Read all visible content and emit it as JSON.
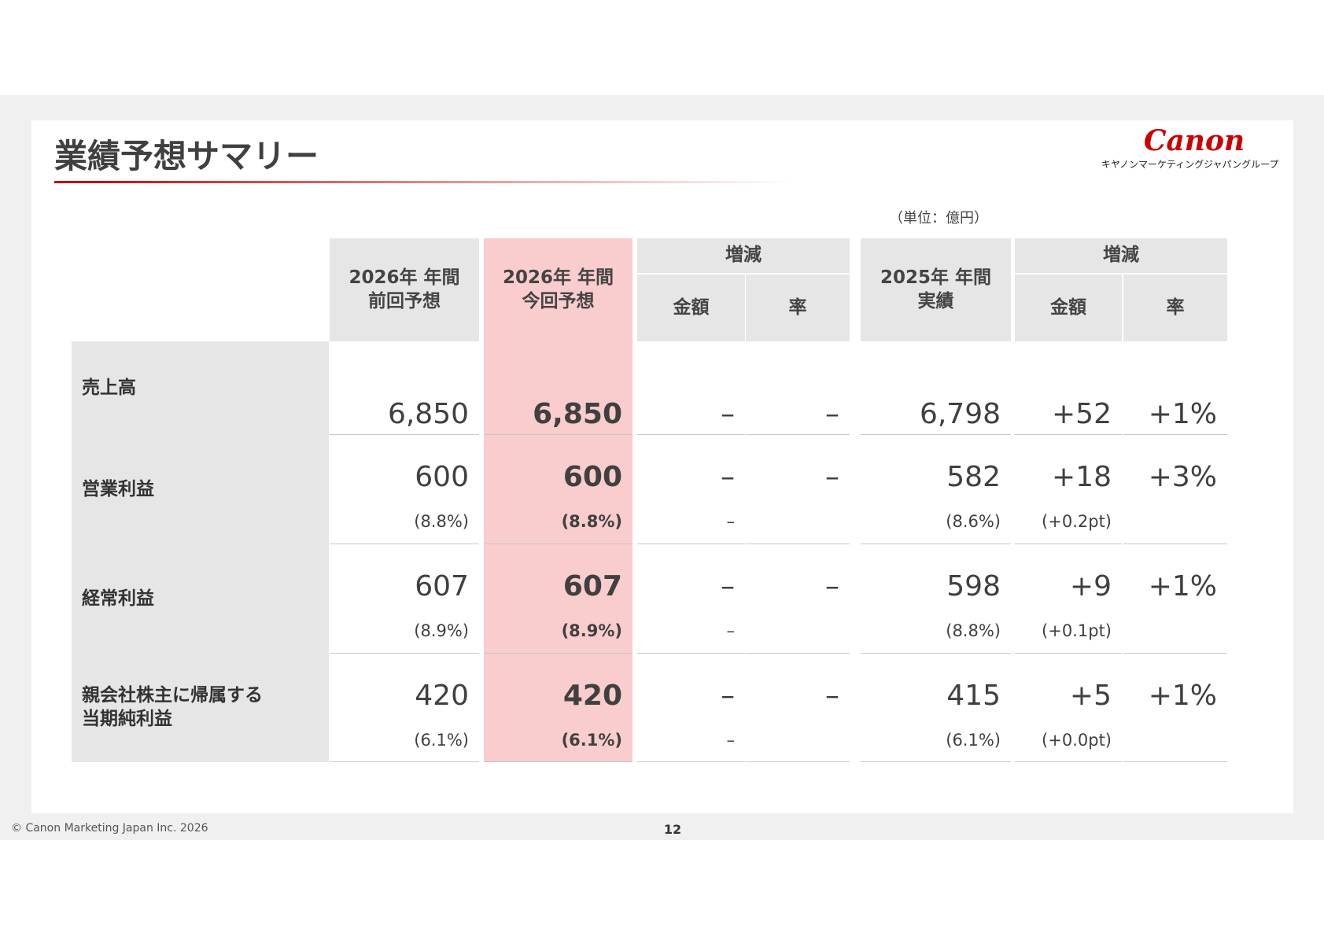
{
  "header": {
    "title": "業績予想サマリー",
    "logo": "Canon",
    "logo_sub": "キヤノンマーケティングジャパングループ",
    "unit": "（単位：億円）"
  },
  "table": {
    "columns": [
      {
        "lines": [
          "2026年 年間",
          "前回予想"
        ]
      },
      {
        "lines": [
          "2026年 年間",
          "今回予想"
        ]
      },
      {
        "group": "増減",
        "subs": [
          "金額",
          "率"
        ]
      },
      {
        "lines": [
          "2025年 年間",
          "実績"
        ]
      },
      {
        "group": "増減",
        "subs": [
          "金額",
          "率"
        ]
      }
    ],
    "rows": [
      {
        "label": [
          "売上高"
        ],
        "cells": [
          {
            "main": "6,850"
          },
          {
            "main": "6,850"
          },
          {
            "main": "–"
          },
          {
            "main": "–"
          },
          {
            "main": "6,798"
          },
          {
            "main": "+52"
          },
          {
            "main": "+1%"
          }
        ]
      },
      {
        "label": [
          "営業利益"
        ],
        "cells": [
          {
            "main": "600",
            "sub": "(8.8%)"
          },
          {
            "main": "600",
            "sub": "(8.8%)"
          },
          {
            "main": "–",
            "sub": "–"
          },
          {
            "main": "–"
          },
          {
            "main": "582",
            "sub": "(8.6%)"
          },
          {
            "main": "+18",
            "sub": "(+0.2pt)"
          },
          {
            "main": "+3%"
          }
        ]
      },
      {
        "label": [
          "経常利益"
        ],
        "cells": [
          {
            "main": "607",
            "sub": "(8.9%)"
          },
          {
            "main": "607",
            "sub": "(8.9%)"
          },
          {
            "main": "–",
            "sub": "–"
          },
          {
            "main": "–"
          },
          {
            "main": "598",
            "sub": "(8.8%)"
          },
          {
            "main": "+9",
            "sub": "(+0.1pt)"
          },
          {
            "main": "+1%"
          }
        ]
      },
      {
        "label": [
          "親会社株主に帰属する",
          "当期純利益"
        ],
        "cells": [
          {
            "main": "420",
            "sub": "(6.1%)"
          },
          {
            "main": "420",
            "sub": "(6.1%)"
          },
          {
            "main": "–",
            "sub": "–"
          },
          {
            "main": "–"
          },
          {
            "main": "415",
            "sub": "(6.1%)"
          },
          {
            "main": "+5",
            "sub": "(+0.0pt)"
          },
          {
            "main": "+1%"
          }
        ]
      }
    ]
  },
  "footer": {
    "copyright": "© Canon Marketing Japan Inc. 2026",
    "page": "12"
  }
}
